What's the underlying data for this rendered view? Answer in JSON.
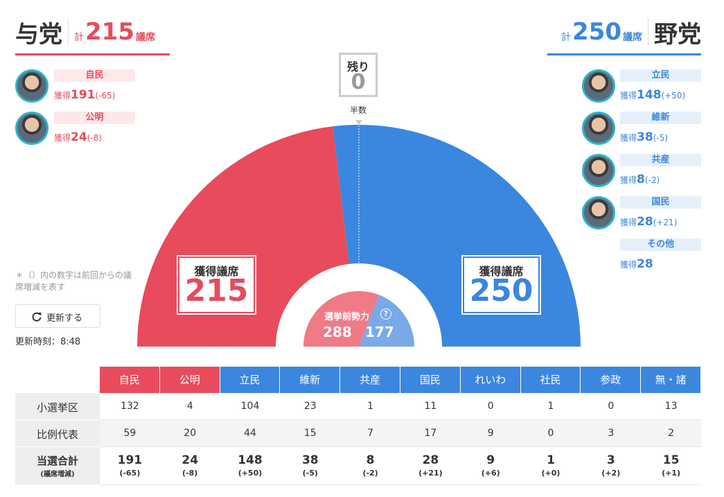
{
  "ruling": {
    "title": "与党",
    "total_prefix": "計",
    "total": 215,
    "total_unit": "議席",
    "parties": [
      {
        "name": "自民",
        "label": "獲得",
        "seats": 191,
        "change": "(-65)"
      },
      {
        "name": "公明",
        "label": "獲得",
        "seats": 24,
        "change": "(-8)"
      }
    ]
  },
  "opposition": {
    "title": "野党",
    "total_prefix": "計",
    "total": 250,
    "total_unit": "議席",
    "parties": [
      {
        "name": "立民",
        "label": "獲得",
        "seats": 148,
        "change": "(+50)"
      },
      {
        "name": "維新",
        "label": "獲得",
        "seats": 38,
        "change": "(-5)"
      },
      {
        "name": "共産",
        "label": "獲得",
        "seats": 8,
        "change": "(-2)"
      },
      {
        "name": "国民",
        "label": "獲得",
        "seats": 28,
        "change": "(+21)"
      },
      {
        "name": "その他",
        "label": "獲得",
        "seats": 28
      }
    ]
  },
  "remaining": {
    "label": "残り",
    "value": 0
  },
  "majority_label": "半数",
  "ruling_box": {
    "label": "獲得議席",
    "value": 215
  },
  "opposition_box": {
    "label": "獲得議席",
    "value": 250
  },
  "pre_election": {
    "label": "選挙前勢力",
    "help": "?",
    "ruling": 288,
    "opposition": 177
  },
  "note": "＊（）内の数字は前回からの議席増減を表す",
  "refresh_button": "更新する",
  "updated": "更新時刻：8:48",
  "table": {
    "columns": [
      "自民",
      "公明",
      "立民",
      "維新",
      "共産",
      "国民",
      "れいわ",
      "社民",
      "参政",
      "無・諸"
    ],
    "rows": [
      {
        "label": "小選挙区",
        "values": [
          132,
          4,
          104,
          23,
          1,
          11,
          0,
          1,
          0,
          13
        ]
      },
      {
        "label": "比例代表",
        "values": [
          59,
          20,
          44,
          15,
          7,
          17,
          9,
          0,
          3,
          2
        ]
      },
      {
        "label": "当選合計",
        "sublabel": "(議席増減)",
        "values": [
          191,
          24,
          148,
          38,
          8,
          28,
          9,
          1,
          3,
          15
        ],
        "changes": [
          "(-65)",
          "(-8)",
          "(+50)",
          "(-5)",
          "(-2)",
          "(+21)",
          "(+6)",
          "(+0)",
          "(+2)",
          "(+1)"
        ]
      }
    ]
  }
}
